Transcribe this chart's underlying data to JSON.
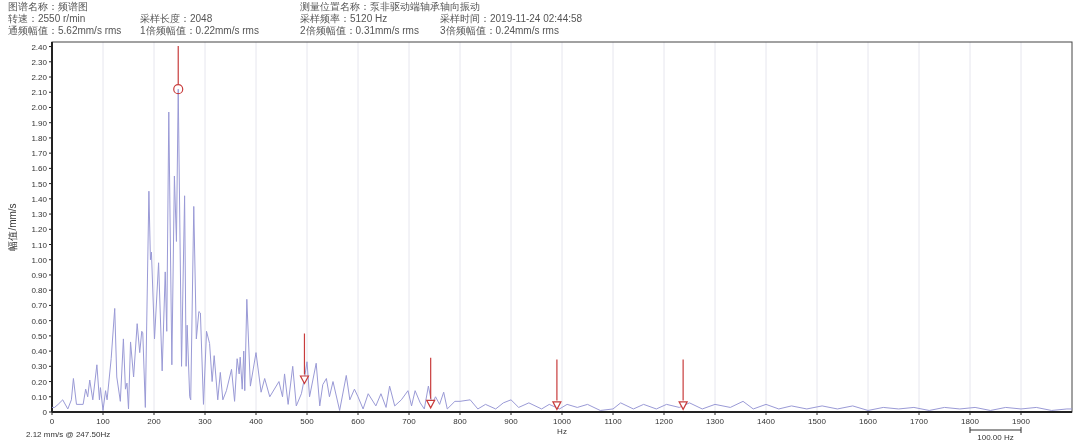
{
  "chart_data": {
    "type": "line",
    "xlabel": "Hz",
    "ylabel": "幅值/mm/s",
    "annotations": [
      "图谱名称：频谱图",
      "转速：2550 r/min",
      "采样长度：2048",
      "通频幅值：5.62mm/s rms",
      "1倍频幅值：0.22mm/s rms",
      "测量位置名称：泵非驱动端轴承轴向振动",
      "采样频率：5120 Hz",
      "采样时间：2019-11-24 02:44:58",
      "2倍频幅值：0.31mm/s rms",
      "3倍频幅值：0.24mm/s rms",
      "2.12 mm/s @ 247.50Hz",
      "100.00 Hz"
    ],
    "xlim": [
      0,
      2000
    ],
    "xticks": [
      0,
      100,
      200,
      300,
      400,
      500,
      600,
      700,
      800,
      900,
      1000,
      1100,
      1200,
      1300,
      1400,
      1500,
      1600,
      1700,
      1800,
      1900
    ],
    "ylim": [
      0,
      2.43
    ],
    "yticks": [
      0,
      {
        "value": 0.1,
        "label": "0.10"
      },
      {
        "value": 0.2,
        "label": "0.20"
      },
      {
        "value": 0.3,
        "label": "0.30"
      },
      {
        "value": 0.4,
        "label": "0.40"
      },
      {
        "value": 0.5,
        "label": "0.50"
      },
      {
        "value": 0.6,
        "label": "0.60"
      },
      {
        "value": 0.7,
        "label": "0.70"
      },
      {
        "value": 0.8,
        "label": "0.80"
      },
      {
        "value": 0.9,
        "label": "0.90"
      },
      {
        "value": 1.0,
        "label": "1.00"
      },
      {
        "value": 1.1,
        "label": "1.10"
      },
      {
        "value": 1.2,
        "label": "1.20"
      },
      {
        "value": 1.3,
        "label": "1.30"
      },
      {
        "value": 1.4,
        "label": "1.40"
      },
      {
        "value": 1.5,
        "label": "1.50"
      },
      {
        "value": 1.6,
        "label": "1.60"
      },
      {
        "value": 1.7,
        "label": "1.70"
      },
      {
        "value": 1.8,
        "label": "1.80"
      },
      {
        "value": 1.9,
        "label": "1.90"
      },
      {
        "value": 2.0,
        "label": "2.00"
      },
      {
        "value": 2.1,
        "label": "2.10"
      },
      {
        "value": 2.2,
        "label": "2.20"
      },
      {
        "value": 2.3,
        "label": "2.30"
      },
      {
        "value": 2.4,
        "label": "2.40"
      }
    ],
    "grid": "x",
    "line_style": "solid",
    "series": [
      {
        "marker": "none",
        "color": "#9a9ad6",
        "x": [
          0,
          5,
          12,
          21,
          31,
          38,
          42,
          48,
          61,
          66,
          70,
          74,
          80,
          88,
          93,
          95,
          100,
          105,
          108,
          116,
          123,
          127,
          134,
          140,
          144,
          147,
          150,
          154,
          160,
          167,
          172,
          176,
          178,
          183,
          190,
          193,
          195,
          201,
          209,
          216,
          222,
          225,
          229,
          235,
          240,
          244,
          247.5,
          254,
          260,
          263,
          265,
          270,
          272,
          278,
          283,
          288,
          291,
          297,
          303,
          309,
          314,
          318,
          325,
          330,
          335,
          342,
          352,
          358,
          363,
          367,
          369,
          373,
          376,
          378,
          382,
          389,
          400,
          410,
          417,
          427,
          445,
          452,
          456,
          463,
          472,
          479,
          489,
          495,
          500,
          505,
          518,
          525,
          531,
          538,
          544,
          551,
          564,
          577,
          584,
          593,
          600,
          610,
          620,
          635,
          645,
          655,
          662,
          672,
          685,
          698,
          705,
          712,
          722,
          730,
          738,
          745,
          752,
          760,
          768,
          775,
          790,
          800,
          820,
          835,
          850,
          870,
          885,
          900,
          915,
          935,
          960,
          975,
          995,
          1010,
          1030,
          1050,
          1075,
          1100,
          1115,
          1140,
          1160,
          1185,
          1205,
          1230,
          1250,
          1275,
          1300,
          1330,
          1355,
          1375,
          1400,
          1425,
          1450,
          1480,
          1510,
          1540,
          1570,
          1600,
          1630,
          1660,
          1690,
          1720,
          1750,
          1780,
          1810,
          1840,
          1870,
          1900,
          1930,
          1960,
          1990,
          2000
        ],
        "values": [
          0.03,
          0.03,
          0.05,
          0.08,
          0.02,
          0.08,
          0.22,
          0.05,
          0.05,
          0.15,
          0.1,
          0.21,
          0.08,
          0.31,
          0.08,
          0.16,
          0.01,
          0.14,
          0.08,
          0.35,
          0.68,
          0.23,
          0.07,
          0.48,
          0.15,
          0.19,
          0.02,
          0.46,
          0.23,
          0.58,
          0.39,
          0.53,
          0.52,
          0.03,
          1.45,
          1.0,
          1.05,
          0.48,
          0.98,
          0.27,
          0.92,
          0.53,
          1.97,
          0.31,
          1.55,
          1.12,
          2.12,
          0.3,
          1.42,
          0.3,
          0.57,
          0.1,
          0.08,
          1.35,
          0.48,
          0.66,
          0.65,
          0.05,
          0.53,
          0.45,
          0.2,
          0.37,
          0.08,
          0.26,
          0.08,
          0.14,
          0.28,
          0.07,
          0.35,
          0.25,
          0.36,
          0.15,
          0.4,
          0.14,
          0.74,
          0.17,
          0.39,
          0.13,
          0.22,
          0.1,
          0.2,
          0.1,
          0.25,
          0.05,
          0.3,
          0.04,
          0.12,
          0.22,
          0.33,
          0.1,
          0.32,
          0.04,
          0.18,
          0.22,
          0.1,
          0.2,
          0.01,
          0.24,
          0.08,
          0.15,
          0.1,
          0.02,
          0.12,
          0.04,
          0.12,
          0.03,
          0.17,
          0.04,
          0.08,
          0.14,
          0.04,
          0.14,
          0.06,
          0.02,
          0.17,
          0.05,
          0.1,
          0.05,
          0.13,
          0.02,
          0.07,
          0.07,
          0.08,
          0.02,
          0.05,
          0.02,
          0.06,
          0.08,
          0.03,
          0.06,
          0.02,
          0.05,
          0.02,
          0.05,
          0.03,
          0.05,
          0.01,
          0.02,
          0.06,
          0.02,
          0.05,
          0.02,
          0.05,
          0.03,
          0.06,
          0.02,
          0.05,
          0.03,
          0.07,
          0.02,
          0.05,
          0.02,
          0.04,
          0.02,
          0.04,
          0.02,
          0.04,
          0.01,
          0.03,
          0.02,
          0.03,
          0.01,
          0.03,
          0.02,
          0.03,
          0.01,
          0.03,
          0.02,
          0.03,
          0.01,
          0.02,
          0.02
        ]
      },
      {
        "type": "scatter",
        "marker": "circle",
        "color": "#c83c3c",
        "x": [
          247.5
        ],
        "values": [
          2.12
        ]
      },
      {
        "type": "scatter",
        "marker": "triangle",
        "color": "#c83c3c",
        "x": [
          495,
          742.5,
          990,
          1237.5
        ],
        "values": [
          0.22,
          0.06,
          0.05,
          0.05
        ]
      }
    ]
  }
}
